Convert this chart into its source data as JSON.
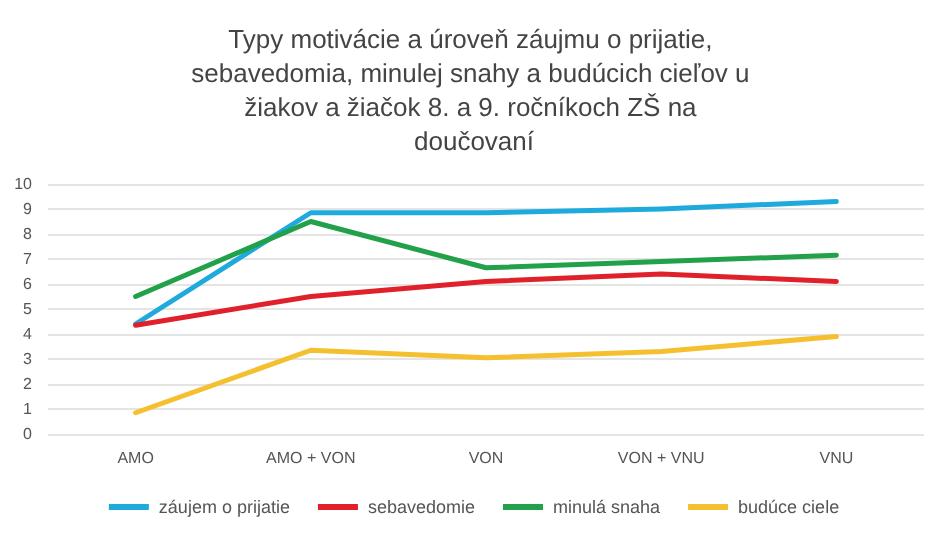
{
  "chart_data": {
    "type": "line",
    "title": "Typy motivácie a úroveň záujmu o prijatie, sebavedomia, minulej snahy a budúcich cieľov u žiakov a žiačok 8. a 9. ročníkoch ZŠ na doučovaní",
    "categories": [
      "AMO",
      "AMO + VON",
      "VON",
      "VON + VNU",
      "VNU"
    ],
    "series": [
      {
        "name": "záujem o prijatie",
        "color": "#1eaadc",
        "values": [
          4.4,
          8.85,
          8.85,
          9.0,
          9.3
        ]
      },
      {
        "name": "sebavedomie",
        "color": "#e0202a",
        "values": [
          4.35,
          5.5,
          6.1,
          6.4,
          6.1
        ]
      },
      {
        "name": "minulá snaha",
        "color": "#22a04a",
        "values": [
          5.5,
          8.5,
          6.65,
          6.9,
          7.15
        ]
      },
      {
        "name": "budúce ciele",
        "color": "#f5c030",
        "values": [
          0.85,
          3.35,
          3.05,
          3.3,
          3.9
        ]
      }
    ],
    "ylim": [
      0,
      10
    ],
    "yticks": [
      0,
      1,
      2,
      3,
      4,
      5,
      6,
      7,
      8,
      9,
      10
    ],
    "grid": "y",
    "legend": "bottom",
    "marker": "none",
    "line_style": "solid"
  }
}
